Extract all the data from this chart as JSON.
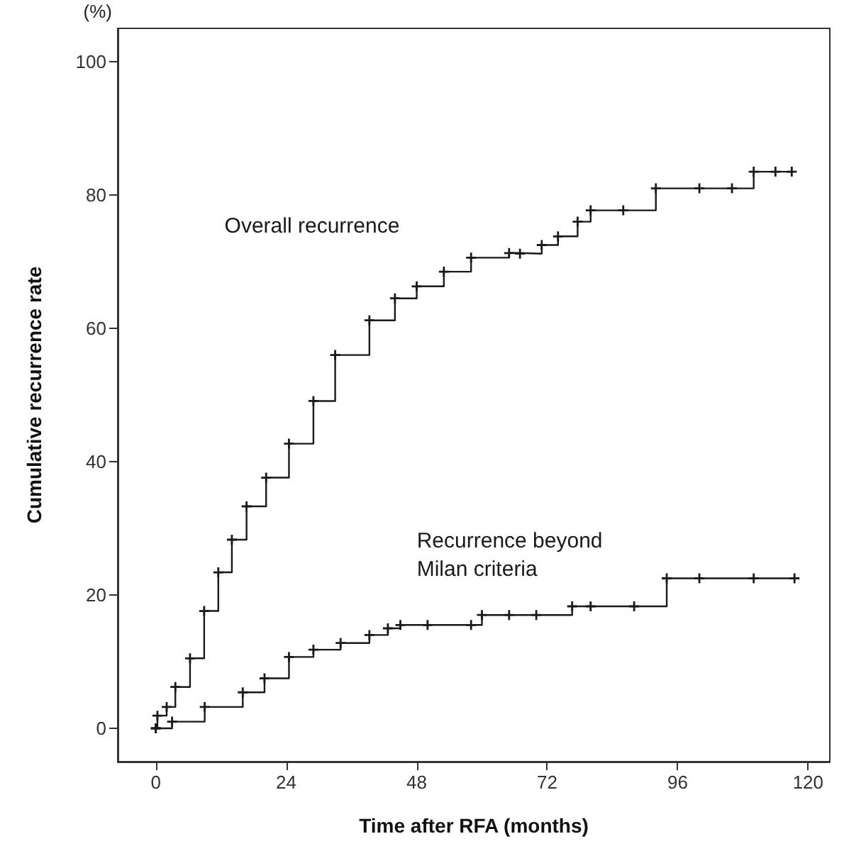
{
  "chart_data": {
    "type": "step",
    "xlabel": "Time after RFA (months)",
    "ylabel": "Cumulative recurrence rate",
    "xlim": [
      -7,
      124
    ],
    "ylim": [
      -5,
      105
    ],
    "xticks": [
      0,
      24,
      48,
      72,
      96,
      120
    ],
    "yticks": [
      0,
      20,
      40,
      60,
      80,
      100
    ],
    "grid": false,
    "legend": false,
    "marker": "cross",
    "line_style": "solid",
    "series": [
      {
        "name": "Overall recurrence",
        "color": "#1a1a1a",
        "x": [
          0,
          0.3,
          2,
          3.6,
          6.3,
          8.9,
          11.5,
          14,
          16.7,
          20.3,
          24.5,
          29,
          33,
          39.3,
          44,
          48,
          53,
          58,
          65,
          67,
          71,
          74,
          77.6,
          80,
          86,
          92,
          100,
          106,
          110,
          114,
          117
        ],
        "values": [
          0,
          1.9,
          3.2,
          6.2,
          10.5,
          17.6,
          23.4,
          28.3,
          33.3,
          37.6,
          42.7,
          49.1,
          56,
          61.2,
          64.5,
          66.3,
          68.5,
          70.6,
          71.3,
          71.2,
          72.5,
          73.8,
          76,
          77.7,
          77.7,
          81,
          81,
          81,
          83.5,
          83.5,
          83.5
        ]
      },
      {
        "name": "Recurrence beyond Milan criteria",
        "color": "#1a1a1a",
        "x": [
          0,
          3,
          9,
          16,
          20,
          24.5,
          29,
          34,
          39.3,
          42.7,
          45,
          50,
          58,
          60,
          65,
          70,
          76.6,
          80,
          88,
          94,
          100,
          110,
          117.5
        ],
        "values": [
          0,
          1,
          3.2,
          5.4,
          7.5,
          10.7,
          11.8,
          12.8,
          14,
          15,
          15.5,
          15.5,
          15.5,
          17,
          17,
          17,
          18.3,
          18.3,
          18.3,
          22.5,
          22.5,
          22.5,
          22.5
        ]
      }
    ],
    "annotations": [
      "(%)"
    ]
  }
}
